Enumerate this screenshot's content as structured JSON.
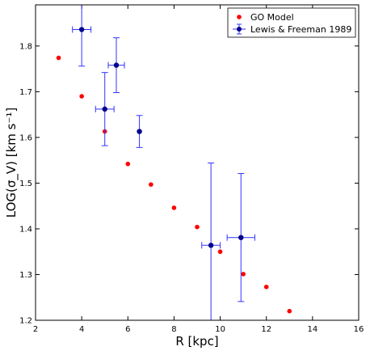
{
  "chart_data": {
    "type": "scatter",
    "xlabel": "R [kpc]",
    "ylabel": "LOG(σ_V) [km s⁻¹]",
    "xlim": [
      2,
      16
    ],
    "ylim": [
      1.2,
      1.89
    ],
    "x_ticks": [
      2,
      4,
      6,
      8,
      10,
      12,
      14,
      16
    ],
    "y_ticks": [
      1.2,
      1.3,
      1.4,
      1.5,
      1.6,
      1.7,
      1.8
    ],
    "x_tick_labels": [
      "2",
      "4",
      "6",
      "8",
      "10",
      "12",
      "14",
      "16"
    ],
    "y_tick_labels": [
      "1.2",
      "1.3",
      "1.4",
      "1.5",
      "1.6",
      "1.7",
      "1.8"
    ],
    "grid": false,
    "legend_position": "top-right",
    "series": [
      {
        "name": "GO Model",
        "color": "#ff0000",
        "marker": "dot",
        "points": [
          {
            "x": 3.0,
            "y": 1.774
          },
          {
            "x": 4.0,
            "y": 1.69
          },
          {
            "x": 5.0,
            "y": 1.613
          },
          {
            "x": 6.0,
            "y": 1.542
          },
          {
            "x": 7.0,
            "y": 1.497
          },
          {
            "x": 8.0,
            "y": 1.446
          },
          {
            "x": 9.0,
            "y": 1.404
          },
          {
            "x": 10.0,
            "y": 1.35
          },
          {
            "x": 11.0,
            "y": 1.301
          },
          {
            "x": 12.0,
            "y": 1.273
          },
          {
            "x": 13.0,
            "y": 1.22
          }
        ]
      },
      {
        "name": "Lewis & Freeman 1989",
        "color": "#00008b",
        "error_color": "#3333ff",
        "marker": "dot-errorbar",
        "points": [
          {
            "x": 4.0,
            "y": 1.836,
            "xerr": 0.4,
            "y_low": 1.756,
            "y_high": 1.95
          },
          {
            "x": 5.0,
            "y": 1.662,
            "xerr": 0.4,
            "y_low": 1.582,
            "y_high": 1.742
          },
          {
            "x": 5.5,
            "y": 1.758,
            "xerr": 0.35,
            "y_low": 1.698,
            "y_high": 1.818
          },
          {
            "x": 6.5,
            "y": 1.613,
            "xerr": 0.0,
            "y_low": 1.578,
            "y_high": 1.648
          },
          {
            "x": 9.6,
            "y": 1.364,
            "xerr": 0.4,
            "y_low": 1.1,
            "y_high": 1.544
          },
          {
            "x": 10.9,
            "y": 1.381,
            "xerr": 0.6,
            "y_low": 1.241,
            "y_high": 1.521
          }
        ]
      }
    ]
  }
}
